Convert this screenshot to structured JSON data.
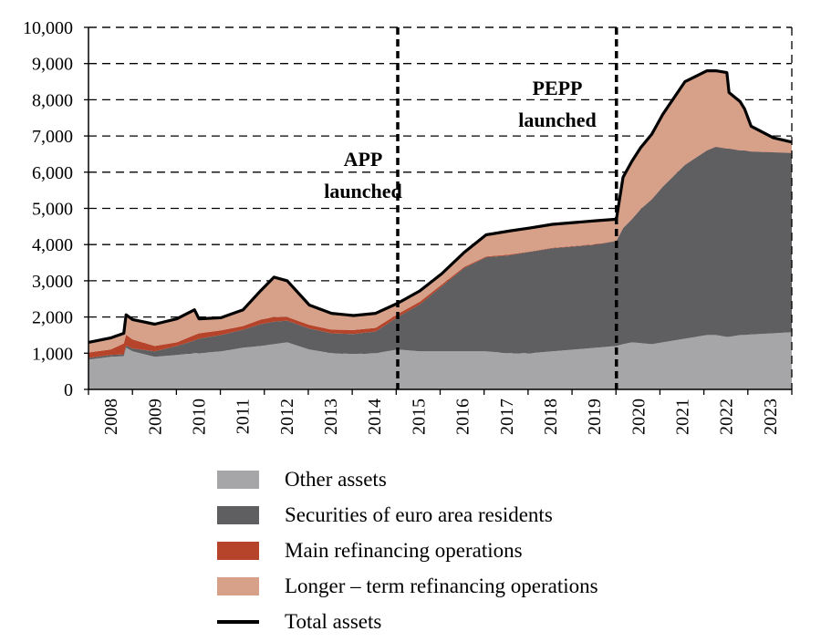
{
  "chart_data": {
    "type": "area",
    "stacked": true,
    "title": "",
    "xlabel": "",
    "ylabel": "",
    "ylim": [
      0,
      10000
    ],
    "xlim": [
      2008.0,
      2023.92
    ],
    "y_ticks": [
      {
        "value": 0,
        "label": "0"
      },
      {
        "value": 1000,
        "label": "1,000"
      },
      {
        "value": 2000,
        "label": "2,000"
      },
      {
        "value": 3000,
        "label": "3,000"
      },
      {
        "value": 4000,
        "label": "4,000"
      },
      {
        "value": 5000,
        "label": "5,000"
      },
      {
        "value": 6000,
        "label": "6,000"
      },
      {
        "value": 7000,
        "label": "7,000"
      },
      {
        "value": 8000,
        "label": "8,000"
      },
      {
        "value": 9000,
        "label": "9,000"
      },
      {
        "value": 10000,
        "label": "10,000"
      }
    ],
    "x_ticks": [
      "2008",
      "2009",
      "2010",
      "2011",
      "2012",
      "2013",
      "2014",
      "2015",
      "2016",
      "2017",
      "2018",
      "2019",
      "2020",
      "2021",
      "2022",
      "2023"
    ],
    "grid": {
      "horizontal": true,
      "style": "dashed"
    },
    "x": [
      2008.0,
      2008.5,
      2008.8,
      2008.85,
      2009.0,
      2009.5,
      2010.0,
      2010.4,
      2010.5,
      2011.0,
      2011.5,
      2011.9,
      2012.2,
      2012.5,
      2013.0,
      2013.5,
      2014.0,
      2014.5,
      2015.0,
      2015.5,
      2016.0,
      2016.5,
      2017.0,
      2017.5,
      2018.0,
      2018.5,
      2019.0,
      2019.5,
      2019.95,
      2020.1,
      2020.3,
      2020.5,
      2020.75,
      2021.0,
      2021.5,
      2022.0,
      2022.2,
      2022.45,
      2022.5,
      2022.75,
      2022.85,
      2023.0,
      2023.5,
      2023.92
    ],
    "series": [
      {
        "name": "Other assets",
        "color": "#a6a6a8",
        "values": [
          820,
          900,
          920,
          1150,
          1050,
          900,
          950,
          1000,
          1000,
          1050,
          1150,
          1200,
          1250,
          1300,
          1100,
          1000,
          980,
          1000,
          1100,
          1050,
          1050,
          1050,
          1050,
          1000,
          1000,
          1050,
          1100,
          1150,
          1200,
          1250,
          1300,
          1280,
          1250,
          1300,
          1400,
          1500,
          1500,
          1450,
          1450,
          1500,
          1500,
          1520,
          1550,
          1580
        ]
      },
      {
        "name": "Securities of euro area residents",
        "color": "#5f5f61",
        "values": [
          50,
          50,
          50,
          60,
          80,
          150,
          250,
          350,
          400,
          450,
          500,
          600,
          620,
          600,
          580,
          550,
          550,
          600,
          900,
          1300,
          1800,
          2300,
          2600,
          2700,
          2800,
          2850,
          2850,
          2850,
          2900,
          3200,
          3400,
          3700,
          4000,
          4300,
          4800,
          5100,
          5200,
          5200,
          5200,
          5100,
          5100,
          5050,
          5000,
          4950
        ]
      },
      {
        "name": "Main refinancing operations",
        "color": "#b5442a",
        "values": [
          150,
          150,
          300,
          300,
          250,
          150,
          100,
          150,
          150,
          130,
          100,
          130,
          130,
          100,
          100,
          100,
          110,
          100,
          80,
          70,
          50,
          30,
          20,
          20,
          10,
          10,
          10,
          10,
          5,
          5,
          5,
          5,
          5,
          5,
          5,
          5,
          5,
          5,
          5,
          5,
          5,
          5,
          5,
          5
        ]
      },
      {
        "name": "Longer – term refinancing operations",
        "color": "#d6a089",
        "values": [
          280,
          320,
          280,
          550,
          550,
          600,
          650,
          700,
          400,
          350,
          450,
          800,
          1100,
          1000,
          550,
          450,
          400,
          400,
          300,
          300,
          300,
          400,
          600,
          650,
          650,
          650,
          650,
          650,
          600,
          1400,
          1600,
          1700,
          1800,
          2000,
          2300,
          2200,
          2100,
          2100,
          1550,
          1350,
          1150,
          700,
          400,
          300
        ]
      }
    ],
    "total": {
      "name": "Total assets",
      "color": "#000000",
      "values": [
        1300,
        1420,
        1550,
        2060,
        1930,
        1800,
        1950,
        2200,
        1950,
        1980,
        2200,
        2730,
        3100,
        3000,
        2330,
        2100,
        2040,
        2100,
        2380,
        2720,
        3200,
        3780,
        4270,
        4370,
        4460,
        4560,
        4610,
        4660,
        4700,
        5860,
        6300,
        6680,
        7050,
        7600,
        8500,
        8800,
        8800,
        8750,
        8200,
        7950,
        7750,
        7270,
        6950,
        6830
      ]
    },
    "events": [
      {
        "x": 2015.0,
        "label_lines": [
          "APP",
          "launched"
        ]
      },
      {
        "x": 2019.95,
        "label_lines": [
          "PEPP",
          "launched"
        ]
      }
    ]
  }
}
